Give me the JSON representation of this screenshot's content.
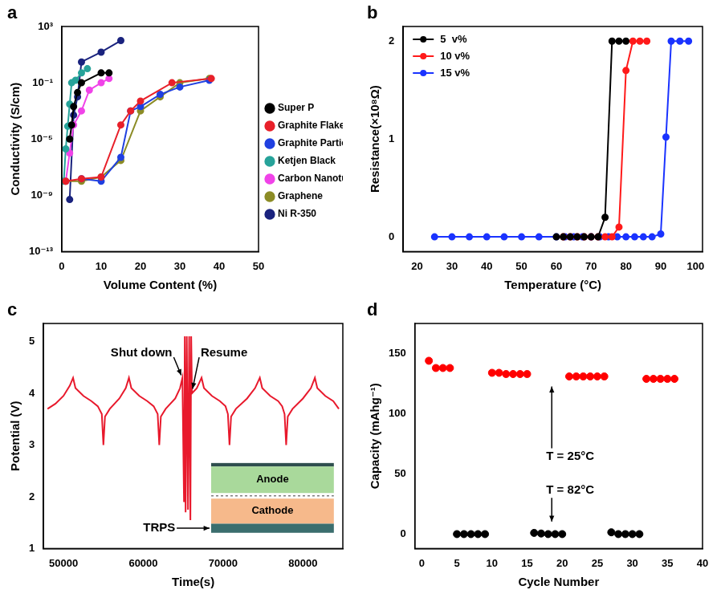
{
  "chart_data": [
    {
      "type": "line",
      "title": "a",
      "x_label": "Volume Content (%)",
      "y_label": "Conductivity (S/cm)",
      "xlim": [
        0,
        50
      ],
      "xticks": [
        0,
        10,
        20,
        30,
        40,
        50
      ],
      "ylim": [
        1e-13,
        1000
      ],
      "yticks": [
        {
          "value": 1e-13,
          "label": "10⁻¹³"
        },
        {
          "value": 1e-09,
          "label": "10⁻⁹"
        },
        {
          "value": 1e-05,
          "label": "10⁻⁵"
        },
        {
          "value": 0.1,
          "label": "10⁻¹"
        },
        {
          "value": 1000,
          "label": "10³"
        }
      ],
      "log": "y",
      "grid": false,
      "legend": "right",
      "marker": "circle",
      "series": [
        {
          "name": "Super P",
          "color": "#000000",
          "x": [
            2,
            2.5,
            3,
            4,
            5,
            10,
            12
          ],
          "values": [
            1e-05,
            0.0001,
            0.002,
            0.02,
            0.1,
            0.5,
            0.5
          ]
        },
        {
          "name": "Graphite Flakes",
          "color": "#e8202a",
          "x": [
            1,
            5,
            10,
            15,
            17.5,
            20,
            28,
            38
          ],
          "values": [
            1e-08,
            1.5e-08,
            2e-08,
            0.0001,
            0.001,
            0.005,
            0.1,
            0.2
          ]
        },
        {
          "name": "Graphite Particles",
          "color": "#2040e0",
          "x": [
            5,
            10,
            15,
            17.5,
            20,
            25,
            30,
            37.5
          ],
          "values": [
            1.5e-08,
            1e-08,
            5e-07,
            0.001,
            0.002,
            0.015,
            0.05,
            0.15
          ]
        },
        {
          "name": "Ketjen Black",
          "color": "#27a39a",
          "x": [
            0.5,
            1,
            1.5,
            2,
            2.5,
            3.5,
            5,
            6.5
          ],
          "values": [
            1e-08,
            2e-06,
            8e-05,
            0.003,
            0.1,
            0.15,
            0.5,
            1
          ]
        },
        {
          "name": "Carbon Nanotubes",
          "color": "#f043e8",
          "x": [
            1,
            2,
            3,
            5,
            7,
            10,
            12
          ],
          "values": [
            1e-08,
            1e-06,
            0.0001,
            0.001,
            0.03,
            0.1,
            0.2
          ]
        },
        {
          "name": "Graphene",
          "color": "#8c8c26",
          "x": [
            1,
            5,
            10,
            15,
            20,
            25,
            30,
            37.5
          ],
          "values": [
            1e-08,
            1e-08,
            2e-08,
            3e-07,
            0.001,
            0.01,
            0.1,
            0.2
          ]
        },
        {
          "name": "Ni R-350",
          "color": "#1a237e",
          "x": [
            2,
            3,
            4,
            5,
            10,
            15
          ],
          "values": [
            5e-10,
            0.0005,
            0.01,
            3,
            15,
            100
          ]
        }
      ]
    },
    {
      "type": "line",
      "title": "b",
      "x_label": "Temperature (°C)",
      "y_label": "Resistance(×10⁸Ω)",
      "xlim": [
        16,
        102
      ],
      "xticks": [
        20,
        30,
        40,
        50,
        60,
        70,
        80,
        90,
        100
      ],
      "ylim": [
        -0.15,
        2.15
      ],
      "yticks": [
        0,
        1,
        2
      ],
      "grid": false,
      "legend": "upper left",
      "marker": "circle",
      "series": [
        {
          "name": "5  v%",
          "color": "#000000",
          "x": [
            60,
            62,
            64,
            66,
            68,
            70,
            72,
            74,
            76,
            78,
            80
          ],
          "values": [
            0,
            0,
            0,
            0,
            0,
            0,
            0,
            0.2,
            2,
            2,
            2
          ]
        },
        {
          "name": "10 v%",
          "color": "#ff1a1a",
          "x": [
            62,
            64,
            66,
            68,
            70,
            72,
            74,
            76,
            78,
            80,
            82,
            84,
            86
          ],
          "values": [
            0,
            0,
            0,
            0,
            0,
            0,
            0,
            0,
            0.1,
            1.7,
            2,
            2,
            2
          ]
        },
        {
          "name": "15 v%",
          "color": "#1a33ff",
          "x": [
            25,
            30,
            35,
            40,
            45,
            50,
            55,
            60,
            62.5,
            65,
            67.5,
            70,
            72.5,
            75,
            77.5,
            80,
            82.5,
            85,
            87.5,
            90,
            91.5,
            93,
            95.5,
            98
          ],
          "values": [
            0,
            0,
            0,
            0,
            0,
            0,
            0,
            0,
            0,
            0,
            0,
            0,
            0,
            0,
            0,
            0,
            0,
            0,
            0,
            0.03,
            1.02,
            2,
            2,
            2
          ]
        }
      ]
    },
    {
      "type": "line",
      "title": "c",
      "x_label": "Time(s)",
      "y_label": "Potential (V)",
      "xlim": [
        47500,
        85000
      ],
      "xticks": [
        50000,
        60000,
        70000,
        80000
      ],
      "ylim": [
        1,
        5.35
      ],
      "yticks": [
        1,
        2,
        3,
        4,
        5
      ],
      "grid": false,
      "marker": "none",
      "annotations": [
        {
          "text": "Shut down"
        },
        {
          "text": "Resume"
        },
        {
          "text": "Anode"
        },
        {
          "text": "Cathode"
        },
        {
          "text": "TRPS"
        }
      ],
      "series": [
        {
          "color": "#e8192c",
          "x": [
            48000,
            49000,
            50000,
            50800,
            51200,
            51500,
            52500,
            53500,
            54300,
            54800,
            55000,
            55200,
            55800,
            57000,
            57800,
            58200,
            58500,
            59500,
            60500,
            61300,
            61800,
            62000,
            62200,
            62800,
            64000,
            64600,
            64900,
            65100,
            65200,
            65300,
            65450,
            65600,
            65750,
            65900,
            66000,
            66100,
            66700,
            67300,
            67600,
            68600,
            69600,
            70300,
            70600,
            70800,
            71000,
            71600,
            73000,
            74000,
            74600,
            74900,
            75900,
            76900,
            77400,
            77700,
            77900,
            78100,
            78700,
            80000,
            81000,
            81500,
            81800,
            82800,
            83800,
            84500
          ],
          "values": [
            3.7,
            3.8,
            3.95,
            4.15,
            4.3,
            4.1,
            3.95,
            3.85,
            3.75,
            3.6,
            3.0,
            3.55,
            3.7,
            3.9,
            4.1,
            4.3,
            4.1,
            3.95,
            3.85,
            3.75,
            3.6,
            3.0,
            3.55,
            3.7,
            3.9,
            4.1,
            4.3,
            1.9,
            5.1,
            1.7,
            5.1,
            1.75,
            5.1,
            1.55,
            5.1,
            4.0,
            4.1,
            4.3,
            4.1,
            3.95,
            3.85,
            3.75,
            3.6,
            3.0,
            3.55,
            3.7,
            3.9,
            4.1,
            4.3,
            4.1,
            3.95,
            3.85,
            3.75,
            3.6,
            3.0,
            3.55,
            3.7,
            3.9,
            4.1,
            4.3,
            4.1,
            3.95,
            3.85,
            3.7
          ]
        }
      ]
    },
    {
      "type": "scatter",
      "title": "d",
      "x_label": "Cycle Number",
      "y_label": "Capacity (mAhg⁻¹)",
      "xlim": [
        -1,
        40
      ],
      "xticks": [
        0,
        5,
        10,
        15,
        20,
        25,
        30,
        35,
        40
      ],
      "ylim": [
        -12,
        175
      ],
      "yticks": [
        0,
        50,
        100,
        150
      ],
      "grid": false,
      "marker": "circle",
      "annotations": [
        {
          "text": "T = 25°C"
        },
        {
          "text": "T = 82°C"
        }
      ],
      "series": [
        {
          "color": "#ff0000",
          "x": [
            1,
            2,
            3,
            4,
            10,
            11,
            12,
            13,
            14,
            15,
            21,
            22,
            23,
            24,
            25,
            26,
            32,
            33,
            34,
            35,
            36
          ],
          "values": [
            144,
            138,
            138,
            138,
            134,
            134,
            133,
            133,
            133,
            133,
            131,
            131,
            131,
            131,
            131,
            131,
            129,
            129,
            129,
            129,
            129
          ]
        },
        {
          "color": "#000000",
          "x": [
            5,
            6,
            7,
            8,
            9,
            16,
            17,
            18,
            19,
            20,
            27,
            28,
            29,
            30,
            31
          ],
          "values": [
            0,
            0,
            0,
            0,
            0,
            1,
            0.5,
            0,
            0,
            0,
            1.5,
            0,
            0,
            0,
            0
          ]
        }
      ]
    }
  ]
}
